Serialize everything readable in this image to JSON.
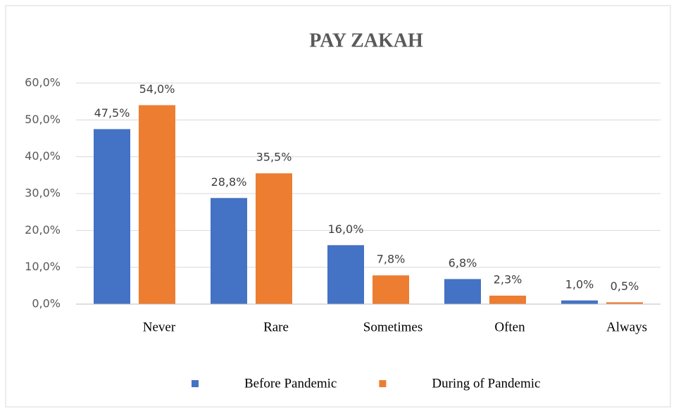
{
  "chart_data": {
    "type": "bar",
    "title": "PAY ZAKAH",
    "categories": [
      "Never",
      "Rare",
      "Sometimes",
      "Often",
      "Always"
    ],
    "series": [
      {
        "name": "Before Pandemic",
        "color": "#4472c4",
        "values": [
          47.5,
          28.8,
          16.0,
          6.8,
          1.0
        ],
        "value_labels": [
          "47,5%",
          "28,8%",
          "16,0%",
          "6,8%",
          "1,0%"
        ]
      },
      {
        "name": "During of Pandemic",
        "color": "#ed7d31",
        "values": [
          54.0,
          35.5,
          7.8,
          2.3,
          0.5
        ],
        "value_labels": [
          "54,0%",
          "35,5%",
          "7,8%",
          "2,3%",
          "0,5%"
        ]
      }
    ],
    "ylim": [
      0,
      60
    ],
    "yticks": [
      {
        "value": 0,
        "label": "0,0%"
      },
      {
        "value": 10,
        "label": "10,0%"
      },
      {
        "value": 20,
        "label": "20,0%"
      },
      {
        "value": 30,
        "label": "30,0%"
      },
      {
        "value": 40,
        "label": "40,0%"
      },
      {
        "value": 50,
        "label": "50,0%"
      },
      {
        "value": 60,
        "label": "60,0%"
      }
    ],
    "grid": true,
    "legend": "bottom"
  }
}
